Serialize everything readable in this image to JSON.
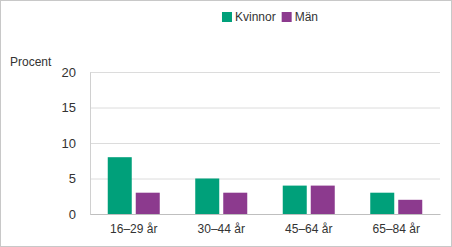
{
  "chart_data": {
    "type": "bar",
    "y_label": "Procent",
    "categories": [
      "16–29 år",
      "30–44 år",
      "45–64 år",
      "65–84 år"
    ],
    "series": [
      {
        "name": "Kvinnor",
        "color": "#00a07a",
        "values": [
          8,
          5,
          4,
          3
        ]
      },
      {
        "name": "Män",
        "color": "#8c3a8e",
        "values": [
          3,
          3,
          4,
          2
        ]
      }
    ],
    "ylim": [
      0,
      20
    ],
    "yticks": [
      0,
      5,
      10,
      15,
      20
    ],
    "grid": true,
    "legend": "top"
  }
}
